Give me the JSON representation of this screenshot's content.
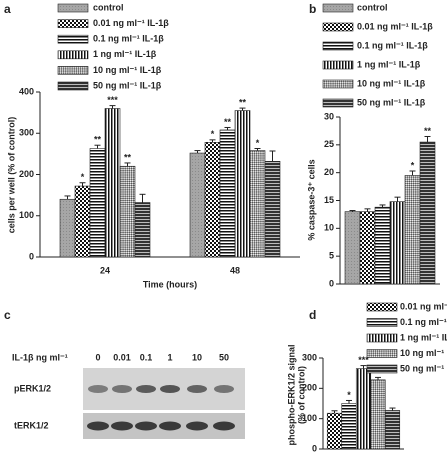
{
  "chart_data": [
    {
      "type": "bar",
      "panel": "a",
      "categories": [
        "24",
        "48"
      ],
      "xlabel": "Time (hours)",
      "ylabel": [
        "cells per well (% of control)"
      ],
      "ylim": [
        0,
        400
      ],
      "yticks": [
        0,
        100,
        200,
        300,
        400
      ],
      "series": [
        {
          "name": "control",
          "pattern": "gray",
          "values": [
            140,
            252
          ],
          "errors": [
            8,
            6
          ],
          "annotations": [
            null,
            null
          ]
        },
        {
          "name": "0.01 ng ml⁻¹ IL-1β",
          "pattern": "checker",
          "values": [
            172,
            278
          ],
          "errors": [
            8,
            6
          ],
          "annotations": [
            "*",
            "*"
          ]
        },
        {
          "name": "0.1 ng ml⁻¹ IL-1β",
          "pattern": "hlines",
          "values": [
            263,
            308
          ],
          "errors": [
            8,
            6
          ],
          "annotations": [
            "**",
            "**"
          ]
        },
        {
          "name": "1 ng ml⁻¹ IL-1β",
          "pattern": "vlines",
          "values": [
            360,
            355
          ],
          "errors": [
            7,
            6
          ],
          "annotations": [
            "***",
            "**"
          ]
        },
        {
          "name": "10 ng ml⁻¹ IL-1β",
          "pattern": "diamond",
          "values": [
            220,
            258
          ],
          "errors": [
            8,
            5
          ],
          "annotations": [
            "**",
            "*"
          ]
        },
        {
          "name": "50 ng ml⁻¹ IL-1β",
          "pattern": "dark",
          "values": [
            132,
            232
          ],
          "errors": [
            20,
            25
          ],
          "annotations": [
            null,
            null
          ]
        }
      ]
    },
    {
      "type": "bar",
      "panel": "b",
      "categories": [
        null
      ],
      "ylabel": [
        "% caspase-3⁺ cells"
      ],
      "ylim": [
        0,
        30
      ],
      "yticks": [
        0,
        5,
        10,
        15,
        20,
        25,
        30
      ],
      "series": [
        {
          "name": "control",
          "pattern": "gray",
          "values": [
            13
          ],
          "errors": [
            0.2
          ],
          "annotations": [
            null
          ]
        },
        {
          "name": "0.01 ng ml⁻¹ IL-1β",
          "pattern": "checker",
          "values": [
            13
          ],
          "errors": [
            0.5
          ],
          "annotations": [
            null
          ]
        },
        {
          "name": "0.1 ng ml⁻¹ IL-1β",
          "pattern": "hlines",
          "values": [
            13.8
          ],
          "errors": [
            0.4
          ],
          "annotations": [
            null
          ]
        },
        {
          "name": "1 ng ml⁻¹ IL-1β",
          "pattern": "vlines",
          "values": [
            14.8
          ],
          "errors": [
            0.8
          ],
          "annotations": [
            null
          ]
        },
        {
          "name": "10 ng ml⁻¹ IL-1β",
          "pattern": "diamond",
          "values": [
            19.5
          ],
          "errors": [
            0.8
          ],
          "annotations": [
            "*"
          ]
        },
        {
          "name": "50 ng ml⁻¹ IL-1β",
          "pattern": "dark",
          "values": [
            25.5
          ],
          "errors": [
            1
          ],
          "annotations": [
            "**"
          ]
        }
      ]
    },
    {
      "type": "bar",
      "panel": "d",
      "categories": [
        null
      ],
      "ylabel": [
        "phospho-ERK1/2 signal",
        "(% of control)"
      ],
      "ylim": [
        0,
        300
      ],
      "yticks": [
        0,
        100,
        200,
        300
      ],
      "series": [
        {
          "name": "0.01 ng ml⁻¹ IL-1β",
          "pattern": "checker",
          "values": [
            118
          ],
          "errors": [
            8
          ],
          "annotations": [
            null
          ]
        },
        {
          "name": "0.1 ng ml⁻¹ IL-1β",
          "pattern": "hlines",
          "values": [
            150
          ],
          "errors": [
            10
          ],
          "annotations": [
            "*"
          ]
        },
        {
          "name": "1 ng ml⁻¹ IL-1β",
          "pattern": "vlines",
          "values": [
            265
          ],
          "errors": [
            10
          ],
          "annotations": [
            "***"
          ]
        },
        {
          "name": "10 ng ml⁻¹ IL-1β",
          "pattern": "diamond",
          "values": [
            228
          ],
          "errors": [
            8
          ],
          "annotations": [
            "**"
          ]
        },
        {
          "name": "50 ng ml⁻¹ IL-1β",
          "pattern": "dark",
          "values": [
            127
          ],
          "errors": [
            8
          ],
          "annotations": [
            null
          ]
        }
      ]
    }
  ],
  "blot": {
    "panel": "c",
    "dose_label": "IL-1β ng ml⁻¹",
    "lanes": [
      "0",
      "0.01",
      "0.1",
      "1",
      "10",
      "50"
    ],
    "rows": [
      "pERK1/2",
      "tERK1/2"
    ]
  }
}
